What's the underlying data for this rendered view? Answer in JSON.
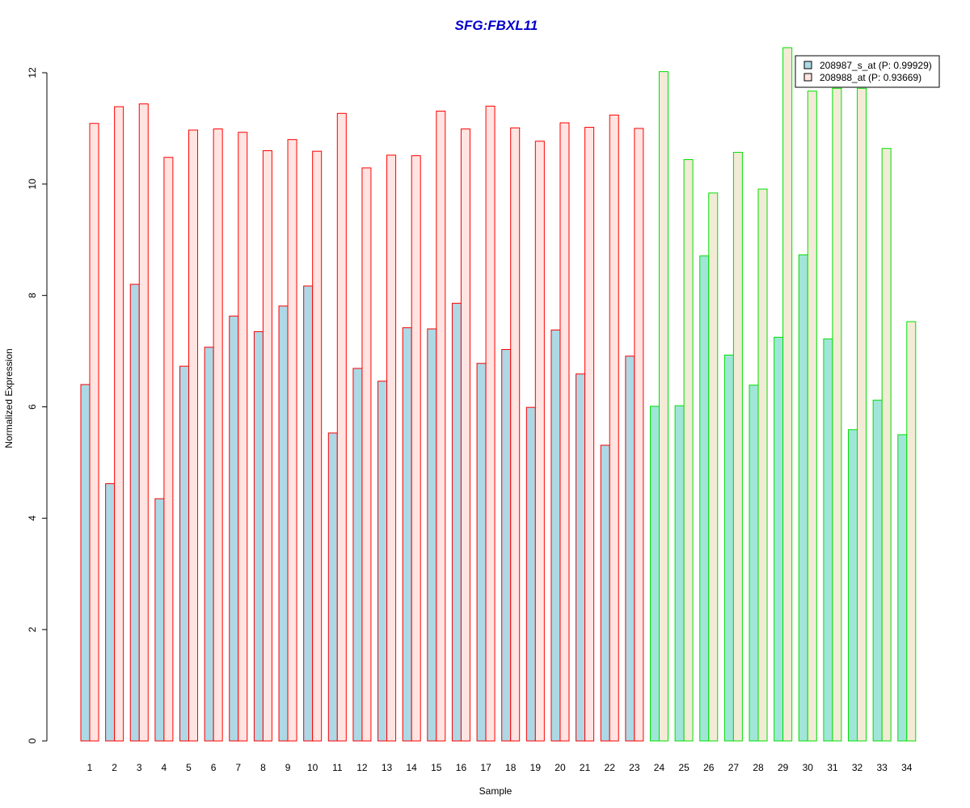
{
  "chart_data": {
    "type": "bar",
    "title": "SFG:FBXL11",
    "title_color": "#0000CC",
    "xlabel": "Sample",
    "ylabel": "Normalized Expression",
    "ylim": [
      0,
      12.5
    ],
    "yticks": [
      0,
      2,
      4,
      6,
      8,
      10,
      12
    ],
    "categories": [
      "1",
      "2",
      "3",
      "4",
      "5",
      "6",
      "7",
      "8",
      "9",
      "10",
      "11",
      "12",
      "13",
      "14",
      "15",
      "16",
      "17",
      "18",
      "19",
      "20",
      "21",
      "22",
      "23",
      "24",
      "25",
      "26",
      "27",
      "28",
      "29",
      "30",
      "31",
      "32",
      "33",
      "34"
    ],
    "groups": [
      {
        "name": "group-1",
        "from": 1,
        "to": 23,
        "border_color": "#FF0000",
        "fill_a": "#ADD8E6",
        "fill_b": "#FFE4E1"
      },
      {
        "name": "group-2",
        "from": 24,
        "to": 34,
        "border_color": "#00E000",
        "fill_a": "#A0E6D8",
        "fill_b": "#F2EBD6"
      }
    ],
    "series": [
      {
        "name": "208987_s_at (P: 0.99929)",
        "values": [
          6.4,
          4.62,
          8.2,
          4.35,
          6.73,
          7.07,
          7.63,
          7.35,
          7.81,
          8.17,
          5.53,
          6.69,
          6.46,
          7.42,
          7.4,
          7.86,
          6.78,
          7.03,
          5.99,
          7.38,
          6.59,
          5.31,
          6.91,
          6.01,
          6.02,
          8.71,
          6.93,
          6.39,
          7.25,
          8.73,
          7.22,
          5.59,
          6.12,
          5.5
        ]
      },
      {
        "name": "208988_at (P: 0.93669)",
        "values": [
          11.09,
          11.39,
          11.44,
          10.48,
          10.97,
          10.99,
          10.93,
          10.6,
          10.8,
          10.59,
          11.27,
          10.29,
          10.52,
          10.51,
          11.31,
          10.99,
          11.4,
          11.01,
          10.77,
          11.1,
          11.02,
          11.24,
          11.0,
          12.02,
          10.44,
          9.84,
          10.57,
          9.91,
          12.45,
          11.67,
          11.72,
          11.72,
          10.64,
          7.53
        ]
      }
    ],
    "legend": {
      "position": "top-right",
      "entries": [
        {
          "label": "208987_s_at (P: 0.99929)",
          "color": "#ADD8E6"
        },
        {
          "label": "208988_at (P: 0.93669)",
          "color": "#FFE4E1"
        }
      ]
    }
  }
}
